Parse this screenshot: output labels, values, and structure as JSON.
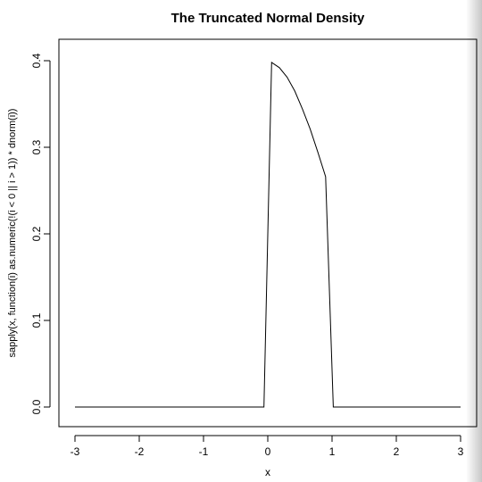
{
  "chart_data": {
    "type": "line",
    "title": "The Truncated Normal Density",
    "xlabel": "x",
    "ylabel": "sapply(x, function(i) as.numeric(!(i < 0 || i > 1)) * dnorm(i))",
    "xlim": [
      -3,
      3
    ],
    "ylim": [
      0,
      0.4
    ],
    "x_ticks": [
      "-3",
      "-2",
      "-1",
      "0",
      "1",
      "2",
      "3"
    ],
    "y_ticks": [
      "0.0",
      "0.1",
      "0.2",
      "0.3",
      "0.4"
    ],
    "grid": false,
    "series": [
      {
        "x": [
          -3.0,
          -0.06,
          0.06,
          0.18,
          0.3,
          0.42,
          0.54,
          0.66,
          0.78,
          0.9,
          1.02,
          3.0
        ],
        "y": [
          0.0,
          0.0,
          0.398,
          0.392,
          0.381,
          0.365,
          0.344,
          0.321,
          0.294,
          0.266,
          0.0,
          0.0
        ]
      }
    ]
  }
}
